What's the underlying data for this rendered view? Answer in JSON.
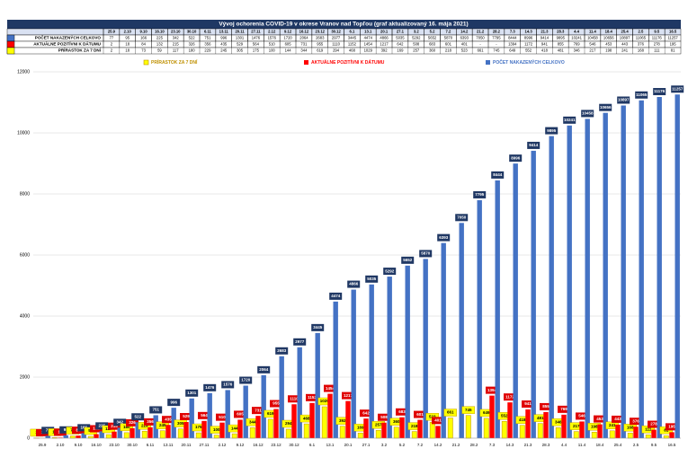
{
  "chart_data": {
    "type": "bar",
    "title": "Vývoj ochorenia COVID-19 v okrese Vranov nad Topľou (graf aktualizovaný 16. mája 2021)",
    "categories": [
      "25.9",
      "2.10",
      "9.10",
      "16.10",
      "23.10",
      "30.10",
      "6.11",
      "13.11",
      "20.11",
      "27.11",
      "2.12",
      "9.12",
      "16.12",
      "23.12",
      "30.12",
      "6.1",
      "13.1",
      "20.1",
      "27.1",
      "3.2",
      "5.2",
      "7.2",
      "14.2",
      "21.2",
      "28.2",
      "7.3",
      "14.3",
      "21.3",
      "28.3",
      "4.4",
      "11.4",
      "18.4",
      "25.4",
      "2.5",
      "9.5",
      "16.5"
    ],
    "series": [
      {
        "name": "POČET NAKAZENÝCH CELKOVO",
        "color": "#4472c4",
        "label_color": "#203864",
        "values": [
          77,
          95,
          166,
          225,
          342,
          522,
          751,
          996,
          1301,
          1476,
          1576,
          1720,
          2064,
          2683,
          2977,
          3445,
          4474,
          4866,
          5035,
          5292,
          5652,
          5870,
          6393,
          7050,
          7795,
          8444,
          8996,
          9414,
          9895,
          10241,
          10458,
          10656,
          10897,
          11065,
          11176,
          11257
        ]
      },
      {
        "name": "AKTUÁLNE POZITÍVNI K DÁTUMU",
        "color": "#ff0000",
        "label_color": "#e00000",
        "values": [
          2,
          18,
          84,
          132,
          215,
          326,
          356,
          435,
          529,
          564,
          510,
          605,
          731,
          955,
          1110,
          1152,
          1454,
          1217,
          642,
          508,
          683,
          601,
          401,
          null,
          null,
          1394,
          1172,
          941,
          855,
          769,
          546,
          453,
          443,
          376,
          278,
          195
        ],
        "value_labels": [
          "2",
          "18",
          "84",
          "132",
          "215",
          "326",
          "356",
          "435",
          "529",
          "564",
          "510",
          "605",
          "731",
          "955",
          "1110",
          "1152",
          "1454",
          "1217",
          "642",
          "508",
          "683",
          "601",
          "401",
          "-",
          "-",
          "1394",
          "1172",
          "941",
          "855",
          "769",
          "546",
          "453",
          "443",
          "376",
          "278",
          "195"
        ]
      },
      {
        "name": "PRÍRASTOK ZA 7 DNÍ",
        "color": "#ffff00",
        "label_color": "#ffff00",
        "values": [
          2,
          18,
          73,
          59,
          117,
          180,
          229,
          245,
          305,
          175,
          100,
          144,
          344,
          619,
          294,
          468,
          1029,
          392,
          169,
          257,
          360,
          218,
          523,
          661,
          745,
          649,
          552,
          418,
          481,
          346,
          217,
          198,
          241,
          168,
          111,
          81
        ]
      }
    ],
    "ylim": [
      0,
      12000
    ],
    "yticks": [
      0,
      2000,
      4000,
      6000,
      8000,
      10000,
      12000
    ],
    "grid": true
  }
}
